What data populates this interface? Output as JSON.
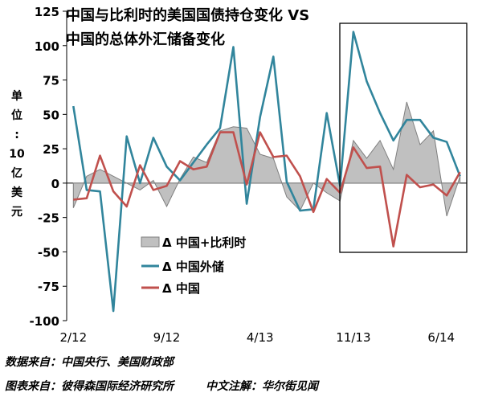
{
  "chart_data": {
    "type": "area+line",
    "title_lines": [
      "中国与比利时的美国国债持仓变化 VS",
      "中国的总体外汇储备变化"
    ],
    "ylabel_chars": [
      "单",
      "位",
      ":",
      "10",
      "亿",
      "美",
      "元"
    ],
    "ylim": [
      -100,
      125
    ],
    "yticks": [
      -100,
      -75,
      -50,
      -25,
      0,
      25,
      50,
      75,
      100,
      125
    ],
    "x_tick_labels": [
      {
        "index": 0,
        "label": "2/12"
      },
      {
        "index": 7,
        "label": "9/12"
      },
      {
        "index": 14,
        "label": "4/13"
      },
      {
        "index": 21,
        "label": "11/13"
      },
      {
        "index": 28,
        "label": "6/14"
      }
    ],
    "legend": [
      "Δ  中国+比利时",
      "Δ  中国外储",
      "Δ  中国"
    ],
    "series": [
      {
        "name": "Δ  中国+比利时",
        "style": "area",
        "color": "#c0c0c0",
        "values": [
          -18,
          5,
          10,
          5,
          0,
          -5,
          2,
          -17,
          3,
          19,
          15,
          38,
          41,
          40,
          21,
          18,
          -10,
          -20,
          0,
          -7,
          -13,
          31,
          18,
          31,
          10,
          59,
          28,
          38,
          -24,
          5
        ]
      },
      {
        "name": "Δ  中国外储",
        "style": "line",
        "color": "#31859c",
        "values": [
          56,
          -5,
          -6,
          -93,
          34,
          0,
          33,
          12,
          2,
          15,
          28,
          40,
          99,
          -15,
          48,
          92,
          1,
          -20,
          -19,
          51,
          -2,
          110,
          74,
          51,
          31,
          46,
          46,
          33,
          30,
          5
        ]
      },
      {
        "name": "Δ  中国",
        "style": "line",
        "color": "#c0504d",
        "values": [
          -12,
          -11,
          20,
          -6,
          -17,
          13,
          -5,
          -2,
          16,
          10,
          12,
          37,
          37,
          -1,
          37,
          19,
          20,
          5,
          -21,
          3,
          -7,
          26,
          11,
          12,
          -46,
          6,
          -3,
          -1,
          -9,
          8
        ]
      }
    ]
  },
  "footer": {
    "source1": "数据来自：中国央行、美国财政部",
    "source2_left": "图表来自：彼得森国际经济研究所",
    "source2_right": "中文注解：华尔街见闻"
  }
}
